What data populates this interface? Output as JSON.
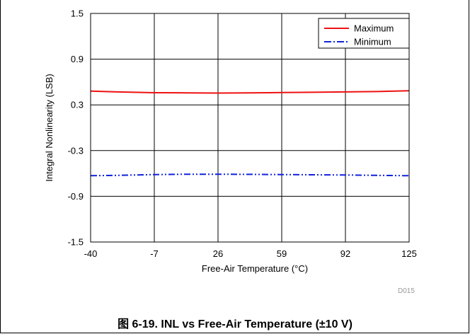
{
  "chart_data": {
    "type": "line",
    "x": [
      -40,
      -26,
      -7,
      10,
      26,
      42,
      59,
      75,
      92,
      108,
      125
    ],
    "series": [
      {
        "name": "Maximum",
        "color": "#ee1111",
        "dash": "solid",
        "values": [
          0.48,
          0.47,
          0.46,
          0.458,
          0.455,
          0.458,
          0.462,
          0.465,
          0.47,
          0.475,
          0.485
        ]
      },
      {
        "name": "Minimum",
        "color": "#1122dd",
        "dash": "dash-dot-dot",
        "values": [
          -0.63,
          -0.625,
          -0.615,
          -0.61,
          -0.61,
          -0.612,
          -0.615,
          -0.618,
          -0.62,
          -0.625,
          -0.63
        ]
      }
    ],
    "xlim": [
      -40,
      125
    ],
    "ylim": [
      -1.5,
      1.5
    ],
    "xticks": [
      "-40",
      "-7",
      "26",
      "59",
      "92",
      "125"
    ],
    "yticks": [
      "1.5",
      "0.9",
      "0.3",
      "-0.3",
      "-0.9",
      "-1.5"
    ],
    "xlabel": "Free-Air Temperature (°C)",
    "ylabel": "Integral Nonlinearity (LSB)",
    "grid": true,
    "legend_position": "top-right",
    "figure_id": "D015"
  },
  "caption": "图 6-19. INL vs Free-Air Temperature (±10 V)"
}
